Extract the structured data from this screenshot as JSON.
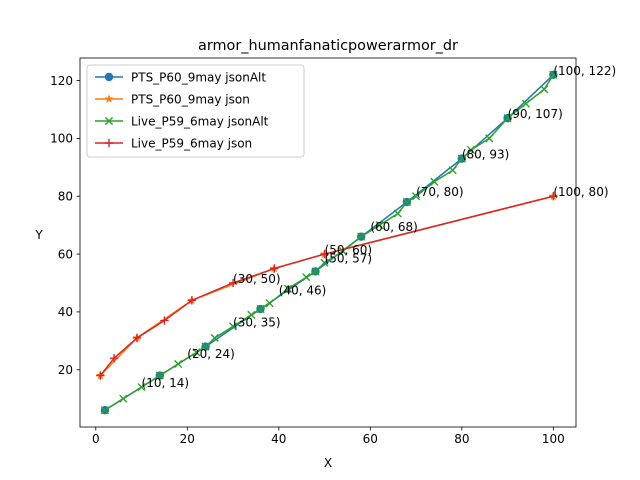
{
  "chart_data": {
    "type": "line",
    "title": "armor_humanfanaticpowerarmor_dr",
    "xlabel": "X",
    "ylabel": "Y",
    "xlim": [
      -3.45,
      104.95
    ],
    "ylim": [
      0.2,
      127.8
    ],
    "xticks": [
      0,
      20,
      40,
      60,
      80,
      100
    ],
    "yticks": [
      20,
      40,
      60,
      80,
      100,
      120
    ],
    "legend": "top-left",
    "grid": false,
    "series": [
      {
        "name": "PTS_P60_9may jsonAlt",
        "color": "#1f77b4",
        "marker": "circle",
        "x": [
          2,
          14,
          24,
          36,
          48,
          58,
          68,
          80,
          90,
          100
        ],
        "y": [
          6,
          18,
          28,
          41,
          54,
          66,
          78,
          93,
          107,
          122
        ]
      },
      {
        "name": "PTS_P60_9may json",
        "color": "#ff7f0e",
        "marker": "star",
        "x": [
          1,
          9,
          21,
          39,
          50,
          100
        ],
        "y": [
          18,
          31,
          44,
          55,
          60,
          80
        ]
      },
      {
        "name": "Live_P59_6may jsonAlt",
        "color": "#2ca02c",
        "marker": "x",
        "x": [
          2,
          6,
          10,
          14,
          18,
          22,
          24,
          26,
          30,
          34,
          36,
          38,
          42,
          46,
          48,
          50,
          54,
          58,
          62,
          66,
          68,
          70,
          74,
          78,
          80,
          82,
          86,
          90,
          94,
          98,
          100
        ],
        "y": [
          6,
          10,
          14,
          18,
          22,
          26,
          28,
          31,
          35,
          39,
          41,
          43,
          48,
          52,
          54,
          57,
          61,
          66,
          70,
          74,
          78,
          80,
          85,
          89,
          93,
          96,
          100,
          107,
          112,
          117,
          122
        ]
      },
      {
        "name": "Live_P59_6may json",
        "color": "#d62728",
        "marker": "plus",
        "x": [
          1,
          4,
          9,
          15,
          21,
          30,
          39,
          50,
          100
        ],
        "y": [
          18,
          24,
          31,
          37,
          44,
          50,
          55,
          60,
          80
        ]
      }
    ],
    "annotations": [
      {
        "text": "(10, 14)",
        "x": 10,
        "y": 14
      },
      {
        "text": "(20, 24)",
        "x": 20,
        "y": 24
      },
      {
        "text": "(30, 35)",
        "x": 30,
        "y": 35
      },
      {
        "text": "(40, 46)",
        "x": 40,
        "y": 46
      },
      {
        "text": "(50, 57)",
        "x": 50,
        "y": 57
      },
      {
        "text": "(60, 68)",
        "x": 60,
        "y": 68
      },
      {
        "text": "(70, 80)",
        "x": 70,
        "y": 80
      },
      {
        "text": "(80, 93)",
        "x": 80,
        "y": 93
      },
      {
        "text": "(90, 107)",
        "x": 90,
        "y": 107
      },
      {
        "text": "(100, 122)",
        "x": 100,
        "y": 122
      },
      {
        "text": "(30, 50)",
        "x": 30,
        "y": 50
      },
      {
        "text": "(50, 60)",
        "x": 50,
        "y": 60
      },
      {
        "text": "(100, 80)",
        "x": 100,
        "y": 80
      }
    ]
  }
}
